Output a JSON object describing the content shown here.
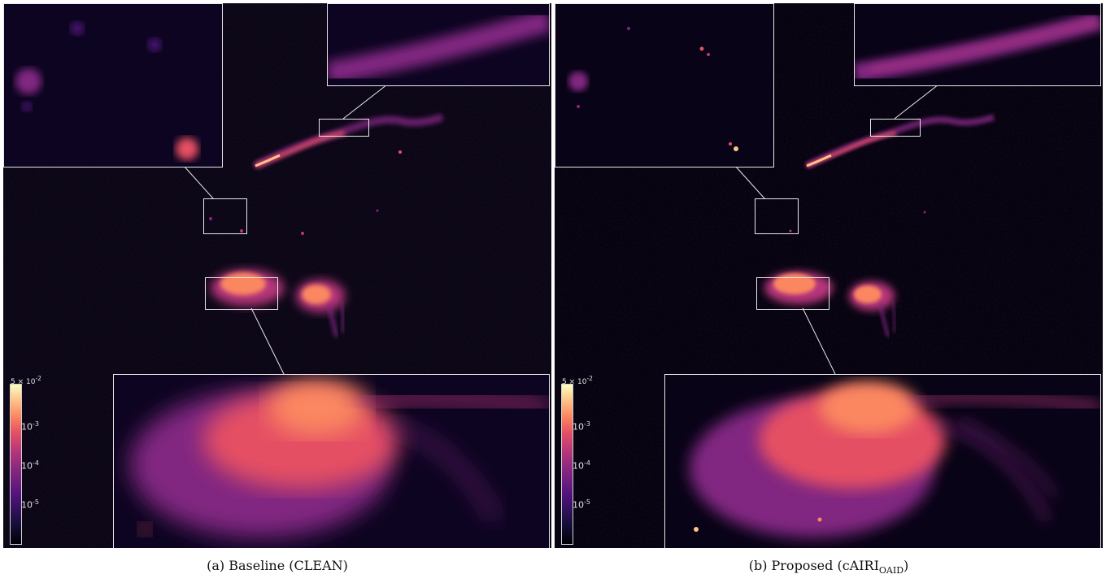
{
  "panels": [
    {
      "id": "a",
      "caption": "(a) Baseline (CLEAN)",
      "colorbar": {
        "colormap": "magma",
        "scale": "log",
        "top_label": "5 × 10",
        "top_exp": "-2",
        "ticks": [
          {
            "base": "10",
            "exp": "-3"
          },
          {
            "base": "10",
            "exp": "-4"
          },
          {
            "base": "10",
            "exp": "-5"
          }
        ]
      }
    },
    {
      "id": "b",
      "caption_main": "(b) Proposed (cAIRI",
      "caption_sub": "OAID",
      "caption_end": ")",
      "colorbar": {
        "colormap": "magma",
        "scale": "log",
        "top_label": "5 × 10",
        "top_exp": "-2",
        "ticks": [
          {
            "base": "10",
            "exp": "-3"
          },
          {
            "base": "10",
            "exp": "-4"
          },
          {
            "base": "10",
            "exp": "-5"
          }
        ]
      }
    }
  ],
  "colors": {
    "background": "#05020e",
    "inset_border": "#e8e8e8",
    "jet_bright": "#fec287",
    "jet_mid": "#e55064",
    "jet_dim": "#812581"
  }
}
